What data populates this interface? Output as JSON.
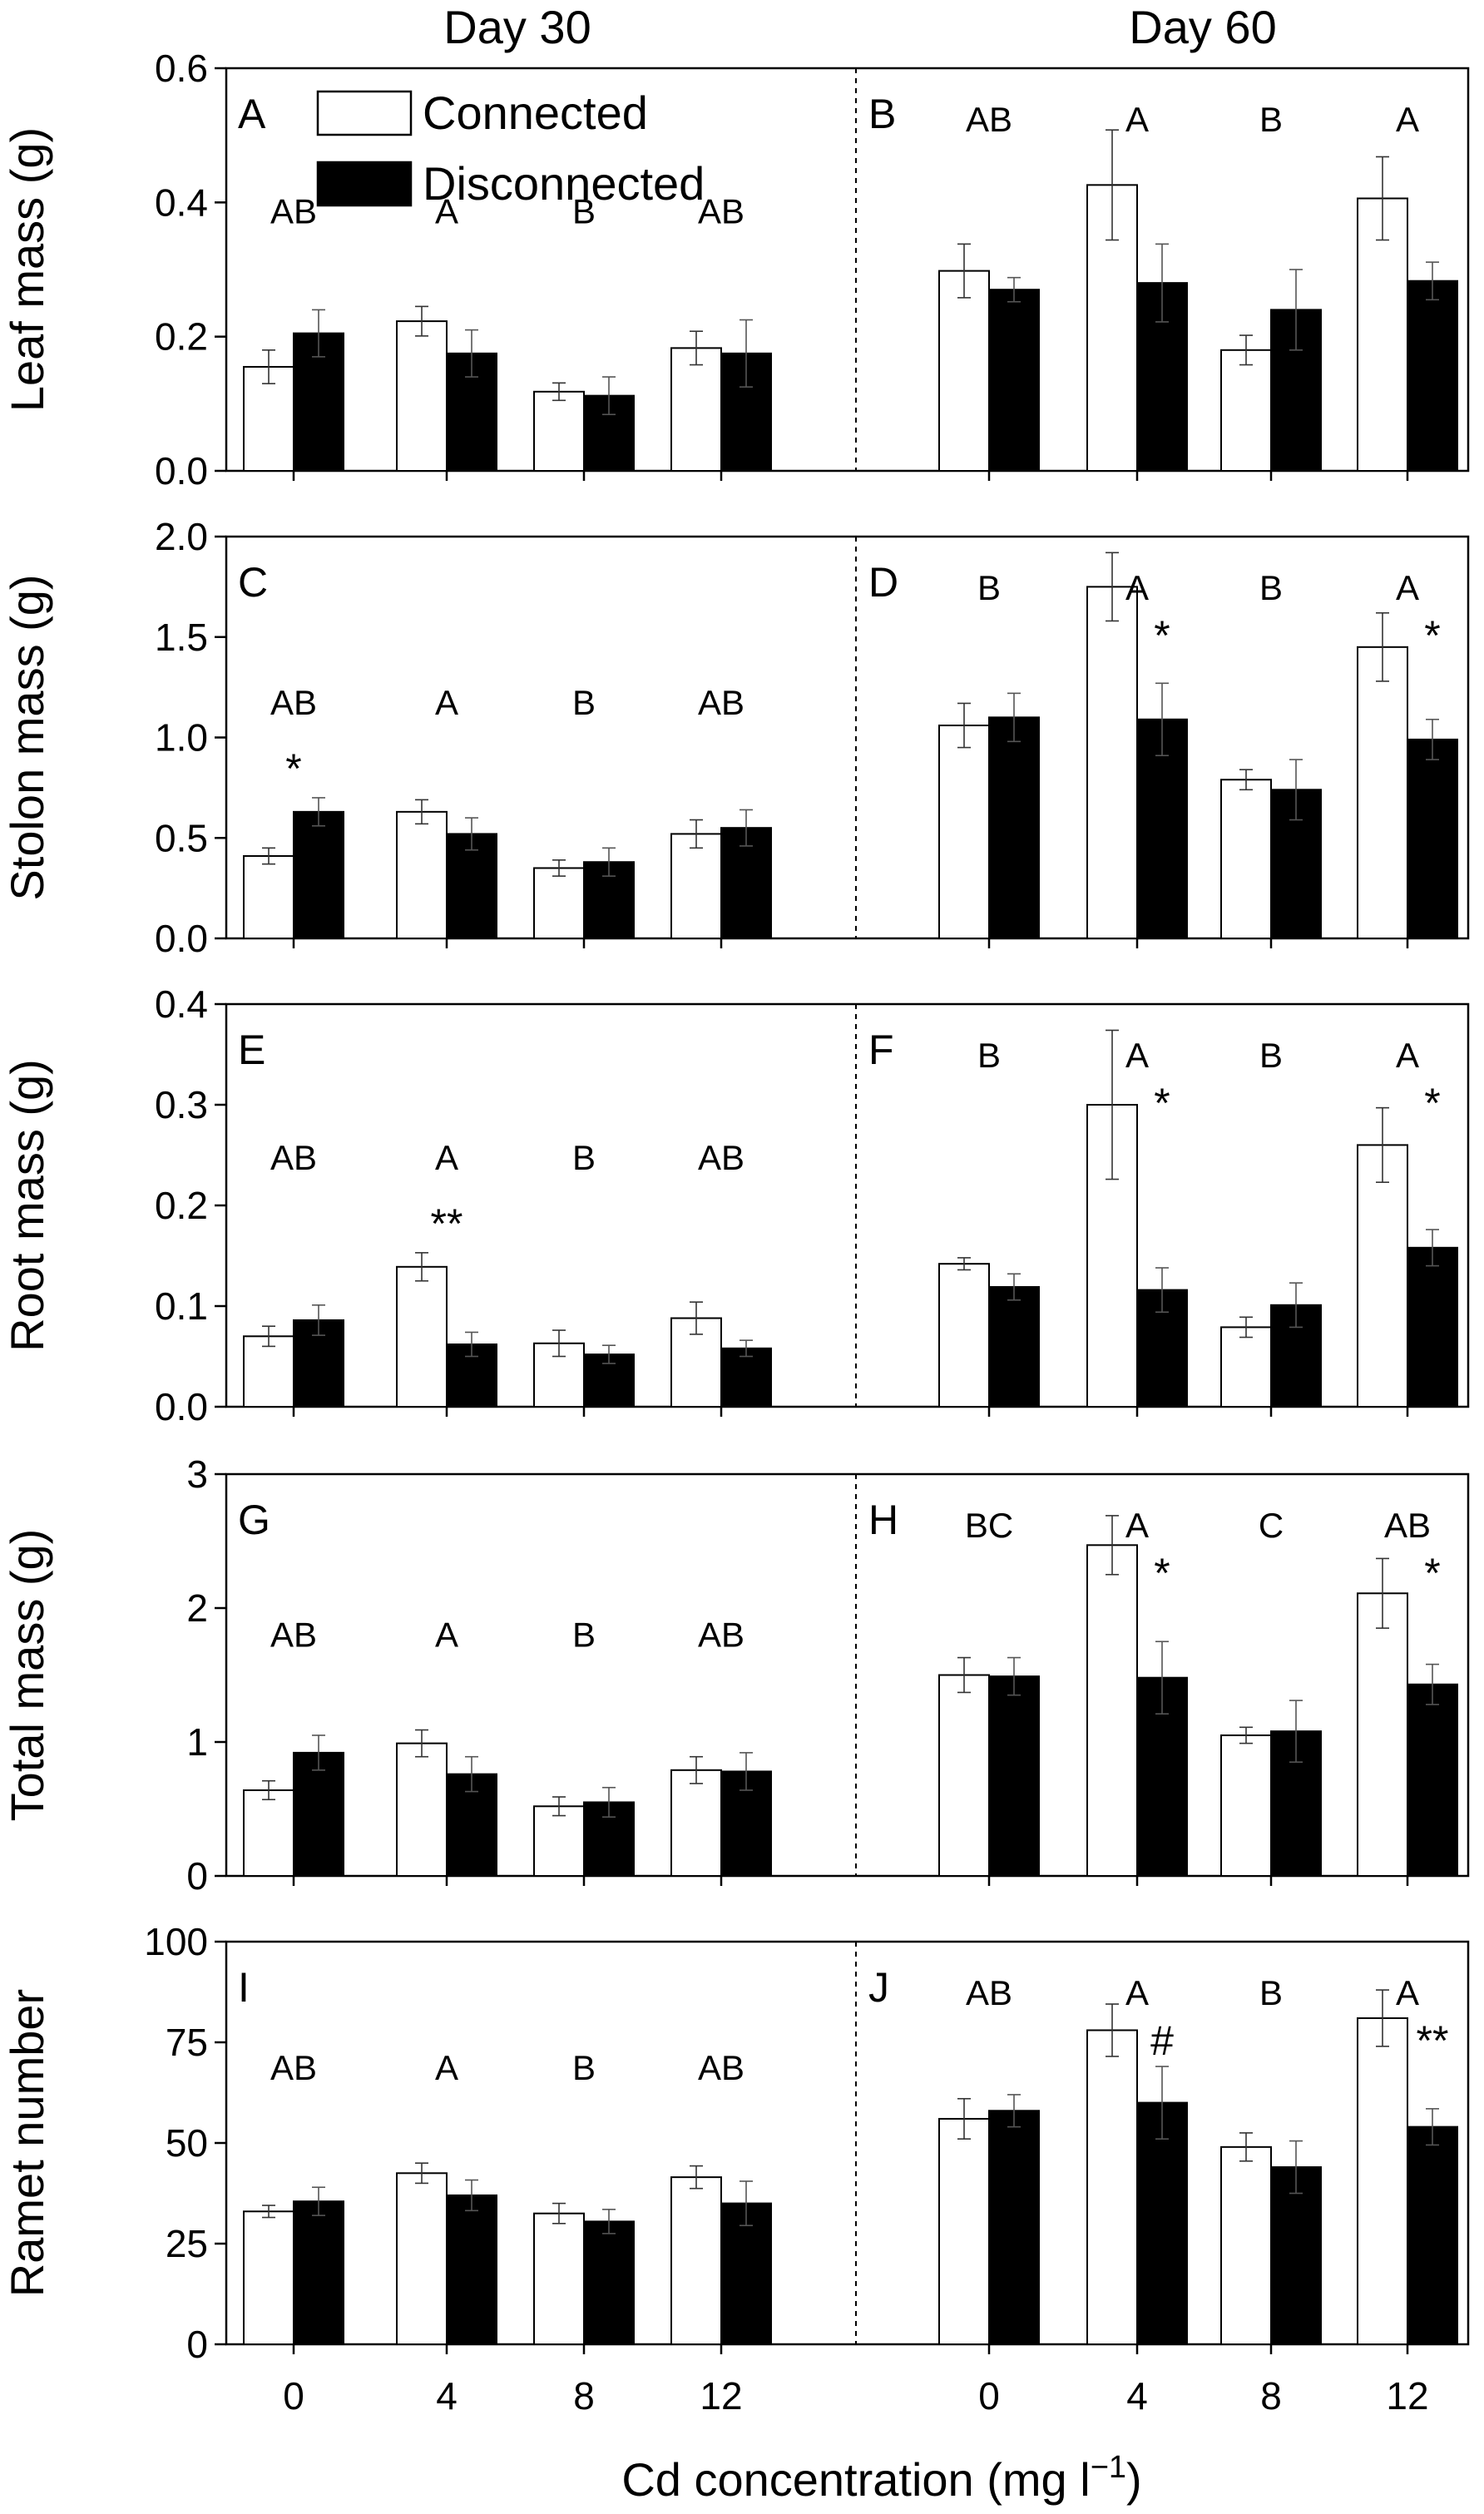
{
  "figure": {
    "col_titles": [
      "Day 30",
      "Day 60"
    ],
    "xlabel": "Cd concentration (mg l",
    "xlabel_sup": "−1",
    "xlabel_close": ")",
    "legend": [
      {
        "label": "Connected",
        "fill": "#ffffff"
      },
      {
        "label": "Disconnected",
        "fill": "#000000"
      }
    ],
    "colors": {
      "connected": "#ffffff",
      "disconnected": "#000000",
      "axis": "#000000"
    }
  },
  "chart_data": [
    {
      "type": "bar",
      "ylabel": "Leaf mass (g)",
      "ylim": [
        0,
        0.6
      ],
      "yticks": [
        "0.0",
        "0.2",
        "0.4",
        "0.6"
      ],
      "categories": [
        "0",
        "4",
        "8",
        "12"
      ],
      "panels": [
        {
          "letter": "A",
          "day": "Day 30",
          "series": [
            {
              "name": "Connected",
              "values": [
                0.155,
                0.223,
                0.118,
                0.183
              ],
              "errors": [
                0.025,
                0.022,
                0.013,
                0.025
              ]
            },
            {
              "name": "Disconnected",
              "values": [
                0.205,
                0.175,
                0.112,
                0.175
              ],
              "errors": [
                0.035,
                0.035,
                0.028,
                0.05
              ]
            }
          ],
          "group_letters": [
            "AB",
            "A",
            "B",
            "AB"
          ],
          "marks": [
            "",
            "",
            "",
            ""
          ]
        },
        {
          "letter": "B",
          "day": "Day 60",
          "series": [
            {
              "name": "Connected",
              "values": [
                0.298,
                0.426,
                0.18,
                0.406
              ],
              "errors": [
                0.04,
                0.082,
                0.022,
                0.062
              ]
            },
            {
              "name": "Disconnected",
              "values": [
                0.27,
                0.28,
                0.24,
                0.283
              ],
              "errors": [
                0.018,
                0.058,
                0.06,
                0.028
              ]
            }
          ],
          "group_letters": [
            "AB",
            "A",
            "B",
            "A"
          ],
          "marks": [
            "",
            "",
            "",
            ""
          ]
        }
      ]
    },
    {
      "type": "bar",
      "ylabel": "Stolon mass (g)",
      "ylim": [
        0,
        2.0
      ],
      "yticks": [
        "0.0",
        "0.5",
        "1.0",
        "1.5",
        "2.0"
      ],
      "categories": [
        "0",
        "4",
        "8",
        "12"
      ],
      "panels": [
        {
          "letter": "C",
          "day": "Day 30",
          "series": [
            {
              "name": "Connected",
              "values": [
                0.41,
                0.63,
                0.35,
                0.52
              ],
              "errors": [
                0.04,
                0.06,
                0.04,
                0.07
              ]
            },
            {
              "name": "Disconnected",
              "values": [
                0.63,
                0.52,
                0.38,
                0.55
              ],
              "errors": [
                0.07,
                0.08,
                0.07,
                0.09
              ]
            }
          ],
          "group_letters": [
            "AB",
            "A",
            "B",
            "AB"
          ],
          "marks": [
            "*",
            "",
            "",
            ""
          ]
        },
        {
          "letter": "D",
          "day": "Day 60",
          "series": [
            {
              "name": "Connected",
              "values": [
                1.06,
                1.75,
                0.79,
                1.45
              ],
              "errors": [
                0.11,
                0.17,
                0.05,
                0.17
              ]
            },
            {
              "name": "Disconnected",
              "values": [
                1.1,
                1.09,
                0.74,
                0.99
              ],
              "errors": [
                0.12,
                0.18,
                0.15,
                0.1
              ]
            }
          ],
          "group_letters": [
            "B",
            "A",
            "B",
            "A"
          ],
          "marks": [
            "",
            "*",
            "",
            "*"
          ]
        }
      ]
    },
    {
      "type": "bar",
      "ylabel": "Root mass (g)",
      "ylim": [
        0,
        0.4
      ],
      "yticks": [
        "0.0",
        "0.1",
        "0.2",
        "0.3",
        "0.4"
      ],
      "categories": [
        "0",
        "4",
        "8",
        "12"
      ],
      "panels": [
        {
          "letter": "E",
          "day": "Day 30",
          "series": [
            {
              "name": "Connected",
              "values": [
                0.07,
                0.139,
                0.063,
                0.088
              ],
              "errors": [
                0.01,
                0.014,
                0.013,
                0.016
              ]
            },
            {
              "name": "Disconnected",
              "values": [
                0.086,
                0.062,
                0.052,
                0.058
              ],
              "errors": [
                0.015,
                0.012,
                0.009,
                0.008
              ]
            }
          ],
          "group_letters": [
            "AB",
            "A",
            "B",
            "AB"
          ],
          "marks": [
            "",
            "**",
            "",
            ""
          ]
        },
        {
          "letter": "F",
          "day": "Day 60",
          "series": [
            {
              "name": "Connected",
              "values": [
                0.142,
                0.3,
                0.079,
                0.26
              ],
              "errors": [
                0.006,
                0.074,
                0.01,
                0.037
              ]
            },
            {
              "name": "Disconnected",
              "values": [
                0.119,
                0.116,
                0.101,
                0.158
              ],
              "errors": [
                0.013,
                0.022,
                0.022,
                0.018
              ]
            }
          ],
          "group_letters": [
            "B",
            "A",
            "B",
            "A"
          ],
          "marks": [
            "",
            "*",
            "",
            "*"
          ]
        }
      ]
    },
    {
      "type": "bar",
      "ylabel": "Total mass (g)",
      "ylim": [
        0,
        3
      ],
      "yticks": [
        "0",
        "1",
        "2",
        "3"
      ],
      "categories": [
        "0",
        "4",
        "8",
        "12"
      ],
      "panels": [
        {
          "letter": "G",
          "day": "Day 30",
          "series": [
            {
              "name": "Connected",
              "values": [
                0.64,
                0.99,
                0.52,
                0.79
              ],
              "errors": [
                0.07,
                0.1,
                0.07,
                0.1
              ]
            },
            {
              "name": "Disconnected",
              "values": [
                0.92,
                0.76,
                0.55,
                0.78
              ],
              "errors": [
                0.13,
                0.13,
                0.11,
                0.14
              ]
            }
          ],
          "group_letters": [
            "AB",
            "A",
            "B",
            "AB"
          ],
          "marks": [
            "",
            "",
            "",
            ""
          ]
        },
        {
          "letter": "H",
          "day": "Day 60",
          "series": [
            {
              "name": "Connected",
              "values": [
                1.5,
                2.47,
                1.05,
                2.11
              ],
              "errors": [
                0.13,
                0.22,
                0.06,
                0.26
              ]
            },
            {
              "name": "Disconnected",
              "values": [
                1.49,
                1.48,
                1.08,
                1.43
              ],
              "errors": [
                0.14,
                0.27,
                0.23,
                0.15
              ]
            }
          ],
          "group_letters": [
            "BC",
            "A",
            "C",
            "AB"
          ],
          "marks": [
            "",
            "*",
            "",
            "*"
          ]
        }
      ]
    },
    {
      "type": "bar",
      "ylabel": "Ramet number",
      "ylim": [
        0,
        100
      ],
      "yticks": [
        "0",
        "25",
        "50",
        "75",
        "100"
      ],
      "categories": [
        "0",
        "4",
        "8",
        "12"
      ],
      "panels": [
        {
          "letter": "I",
          "day": "Day 30",
          "series": [
            {
              "name": "Connected",
              "values": [
                33,
                42.5,
                32.5,
                41.5
              ],
              "errors": [
                1.5,
                2.5,
                2.5,
                2.8
              ]
            },
            {
              "name": "Disconnected",
              "values": [
                35.5,
                37,
                30.5,
                35
              ],
              "errors": [
                3.5,
                3.8,
                3,
                5.5
              ]
            }
          ],
          "group_letters": [
            "AB",
            "A",
            "B",
            "AB"
          ],
          "marks": [
            "",
            "",
            "",
            ""
          ]
        },
        {
          "letter": "J",
          "day": "Day 60",
          "series": [
            {
              "name": "Connected",
              "values": [
                56,
                78,
                49,
                81
              ],
              "errors": [
                5,
                6.5,
                3.5,
                7
              ]
            },
            {
              "name": "Disconnected",
              "values": [
                58,
                60,
                44,
                54
              ],
              "errors": [
                4,
                9,
                6.5,
                4.5
              ]
            }
          ],
          "group_letters": [
            "AB",
            "A",
            "B",
            "A"
          ],
          "marks": [
            "",
            "#",
            "",
            "**"
          ]
        }
      ]
    }
  ]
}
